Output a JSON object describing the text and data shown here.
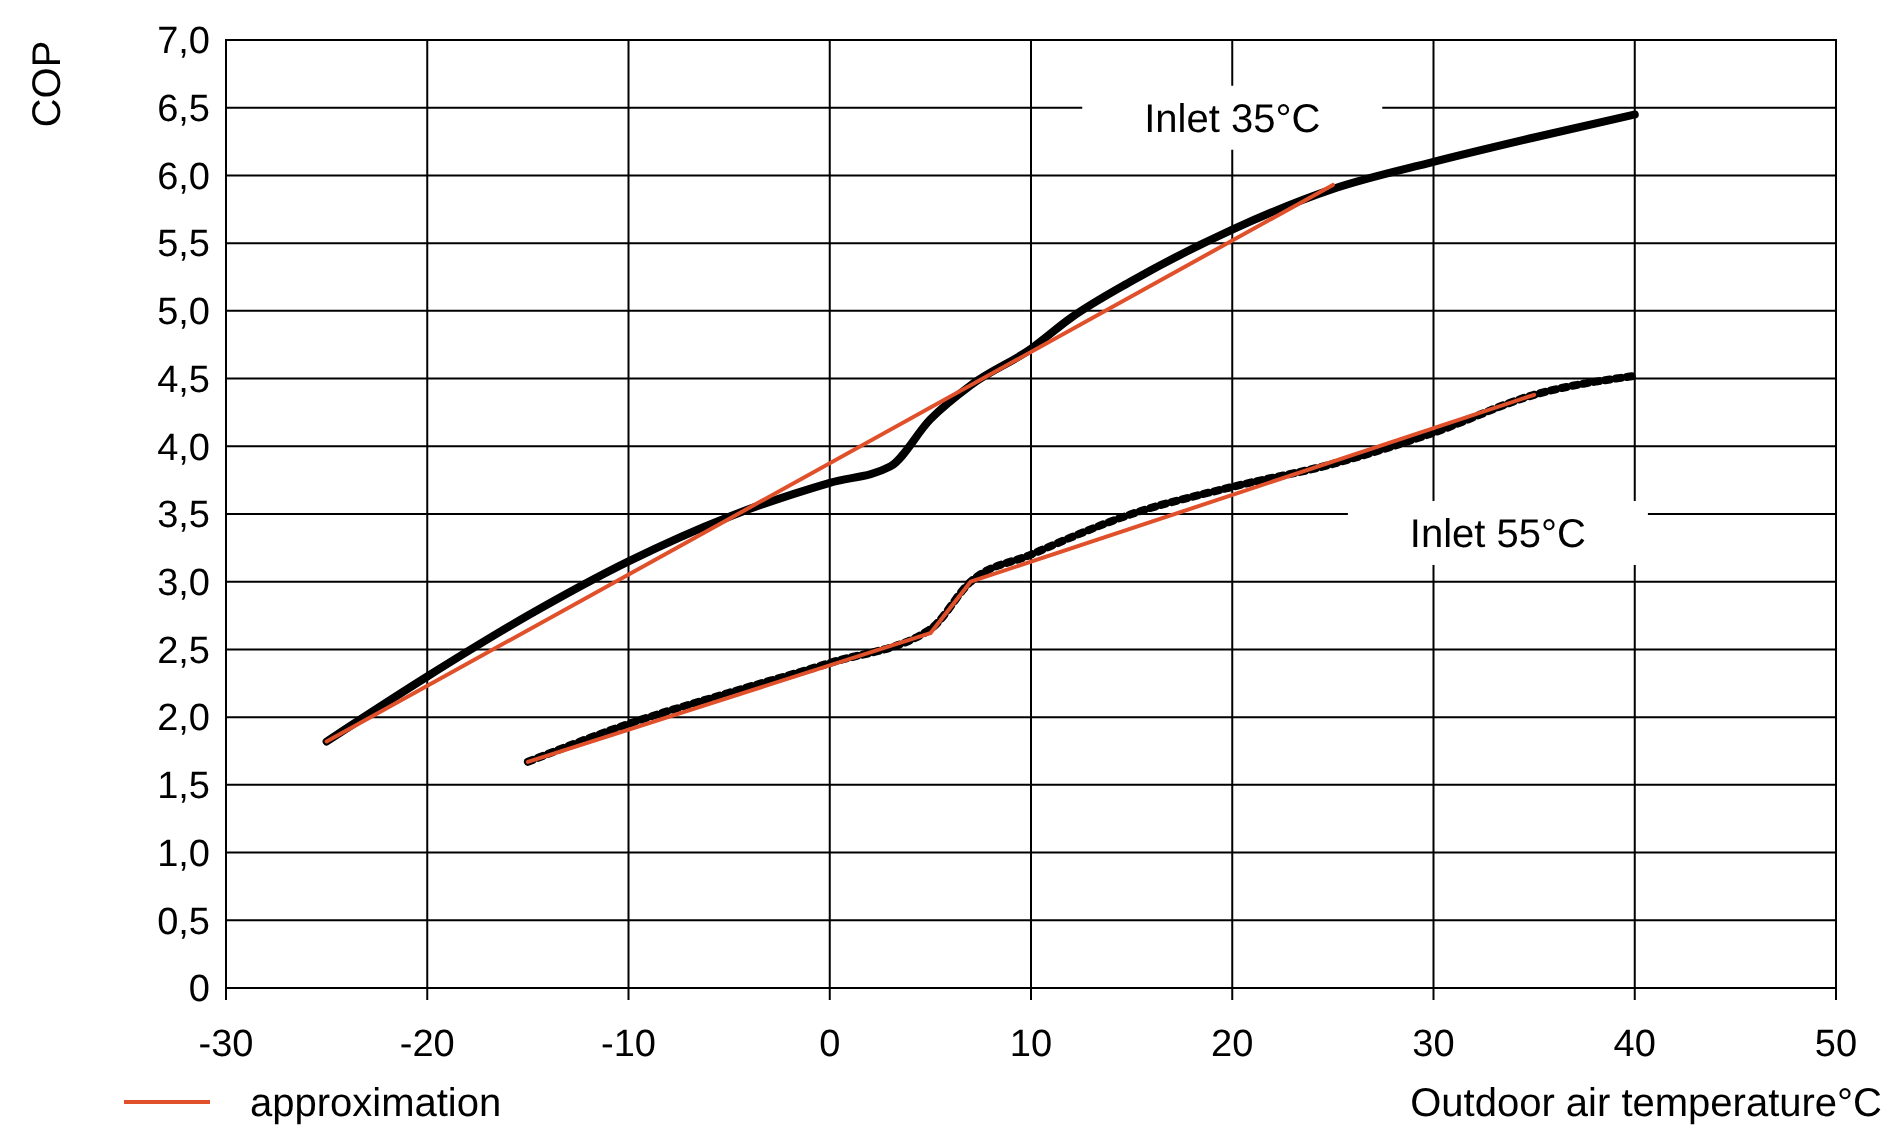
{
  "chart_data": {
    "type": "line",
    "ylabel": "COP",
    "xlabel": "Outdoor air temperature°C",
    "xlim": [
      -30,
      50
    ],
    "xticks": [
      -30,
      -20,
      -10,
      0,
      10,
      20,
      30,
      40,
      50
    ],
    "ylim": [
      0,
      7
    ],
    "yticks": [
      0,
      {
        "value": 0.5,
        "label": "0,5"
      },
      {
        "value": 1,
        "label": "1,0"
      },
      {
        "value": 1.5,
        "label": "1,5"
      },
      {
        "value": 2,
        "label": "2,0"
      },
      {
        "value": 2.5,
        "label": "2,5"
      },
      {
        "value": 3,
        "label": "3,0"
      },
      {
        "value": 3.5,
        "label": "3,5"
      },
      {
        "value": 4,
        "label": "4,0"
      },
      {
        "value": 4.5,
        "label": "4,5"
      },
      {
        "value": 5,
        "label": "5,0"
      },
      {
        "value": 5.5,
        "label": "5,5"
      },
      {
        "value": 6,
        "label": "6,0"
      },
      {
        "value": 6.5,
        "label": "6,5"
      },
      {
        "value": 7,
        "label": "7,0"
      }
    ],
    "grid": true,
    "legend": "bottom left",
    "series": [
      {
        "color": "#000000",
        "line_style": "solid",
        "x": [
          -25,
          -20,
          -15,
          -10,
          -5,
          0,
          3,
          5,
          7,
          10,
          12,
          15,
          20,
          25,
          30,
          35,
          40
        ],
        "values": [
          1.82,
          2.3,
          2.75,
          3.15,
          3.48,
          3.73,
          3.85,
          4.2,
          4.45,
          4.72,
          4.95,
          5.22,
          5.6,
          5.9,
          6.1,
          6.28,
          6.45
        ]
      },
      {
        "name": "approximation",
        "color": "#e0502a",
        "line_style": "solid",
        "x": [
          -25,
          25
        ],
        "values": [
          1.82,
          5.93
        ]
      },
      {
        "color": "#000000",
        "line_style": "dotted",
        "x": [
          -15,
          -10,
          -5,
          0,
          5,
          7,
          10,
          15,
          20,
          25,
          30,
          35,
          40
        ],
        "values": [
          1.67,
          1.95,
          2.18,
          2.4,
          2.65,
          3.0,
          3.2,
          3.5,
          3.7,
          3.87,
          4.1,
          4.38,
          4.52
        ]
      },
      {
        "color": "#e0502a",
        "line_style": "solid",
        "x": [
          -15,
          5,
          7,
          35
        ],
        "values": [
          1.67,
          2.62,
          3.0,
          4.38
        ]
      }
    ],
    "annotations": [
      "Inlet 35°C",
      "Inlet 55°C"
    ]
  }
}
